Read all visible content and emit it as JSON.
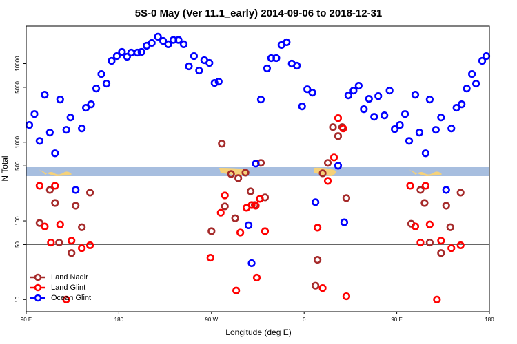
{
  "chart_data": {
    "type": "scatter",
    "title": "5S-0 May (Ver 11.1_early)   2014-09-06 to 2018-12-31",
    "x_label": "Longitude (deg E)",
    "y_label": "N Total",
    "xlim": [
      -270,
      180
    ],
    "xticks": [
      {
        "value": -270,
        "label": "90 E"
      },
      {
        "value": -180,
        "label": "180"
      },
      {
        "value": -90,
        "label": "90 W"
      },
      0,
      {
        "value": 90,
        "label": "90 E"
      },
      180
    ],
    "ylim": [
      7,
      30000
    ],
    "log_y": true,
    "yticks": [
      10,
      50,
      100,
      500,
      1000,
      5000,
      10000
    ],
    "hline": 50,
    "legend": "lower left",
    "series": [
      {
        "name": "Land Nadir",
        "color": "#a52a2a",
        "x": [
          -247,
          -242,
          -222,
          -208,
          -257,
          -238,
          -226,
          -216,
          -80,
          -90,
          -77,
          -71,
          -67,
          -64,
          -57,
          -52,
          -48,
          -42,
          -38,
          11,
          13,
          18,
          23,
          28,
          33,
          37,
          41,
          104,
          113,
          117,
          138,
          152,
          122,
          133,
          142
        ],
        "values": [
          248,
          169,
          156,
          229,
          94,
          53,
          39,
          83,
          960,
          74,
          153,
          395,
          108,
          350,
          411,
          238,
          159,
          546,
          199,
          15,
          32,
          403,
          546,
          1560,
          1200,
          1560,
          195,
          92,
          248,
          169,
          156,
          229,
          53,
          39,
          83
        ]
      },
      {
        "name": "Land Glint",
        "color": "#ff0000",
        "x": [
          -257,
          -242,
          -252,
          -246,
          -237,
          -231,
          -226,
          -216,
          -208,
          -91,
          -81,
          -77,
          -66,
          -62,
          -56,
          -51,
          -47,
          -46,
          -43,
          -38,
          23,
          29,
          33,
          38,
          18,
          13,
          41,
          103,
          118,
          108,
          113,
          122,
          129,
          133,
          143,
          152
        ],
        "values": [
          280,
          280,
          85,
          53,
          90,
          10,
          56,
          45,
          49,
          34,
          127,
          211,
          13,
          71,
          147,
          159,
          156,
          19,
          191,
          74,
          323,
          641,
          2030,
          1500,
          14,
          82,
          11,
          280,
          280,
          85,
          53,
          90,
          10,
          56,
          45,
          49
        ]
      },
      {
        "name": "Ocean Glint",
        "color": "#0000ff",
        "x": [
          -267,
          -262,
          -257,
          -252,
          -247,
          -242,
          -237,
          -231,
          -227,
          -222,
          -216,
          -212,
          -207,
          -202,
          -197,
          -192,
          -187,
          -182,
          -177,
          -172,
          -168,
          -162,
          -158,
          -153,
          -148,
          -142,
          -137,
          -132,
          -127,
          -122,
          -117,
          -112,
          -107,
          -102,
          -97,
          -92,
          -87,
          -83,
          -47,
          -42,
          -36,
          -32,
          -27,
          -22,
          -17,
          -12,
          -7,
          -2,
          3,
          8,
          33,
          11,
          43,
          48,
          53,
          58,
          63,
          68,
          72,
          78,
          83,
          88,
          93,
          98,
          102,
          108,
          112,
          118,
          122,
          128,
          133,
          138,
          143,
          148,
          153,
          158,
          163,
          167,
          173,
          177,
          39,
          -54,
          -51
        ],
        "values": [
          1660,
          2290,
          1040,
          4030,
          1330,
          725,
          3500,
          1440,
          2070,
          248,
          1500,
          2750,
          3040,
          4830,
          7380,
          5570,
          10840,
          12470,
          14090,
          12240,
          13800,
          13800,
          14090,
          16900,
          18330,
          22000,
          19450,
          17620,
          20000,
          20000,
          17620,
          9230,
          12470,
          8170,
          11060,
          10200,
          5680,
          5910,
          535,
          3500,
          8690,
          11750,
          11750,
          17260,
          18700,
          10000,
          9410,
          2860,
          4730,
          4280,
          503,
          173,
          3950,
          4550,
          5240,
          2640,
          3570,
          2110,
          3870,
          2200,
          4550,
          1470,
          1660,
          2290,
          1040,
          4030,
          1330,
          725,
          3500,
          1440,
          2070,
          248,
          1500,
          2750,
          3040,
          4830,
          7380,
          5570,
          10840,
          12470,
          96,
          88,
          29
        ]
      }
    ]
  }
}
